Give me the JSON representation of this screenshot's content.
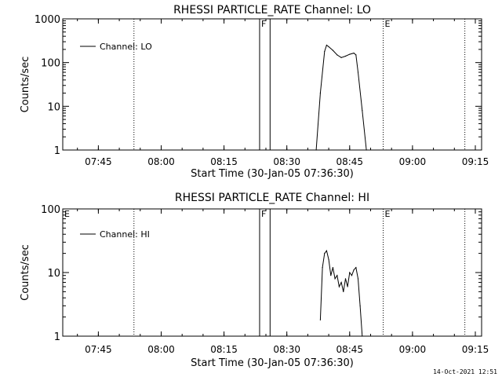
{
  "footer_timestamp": "14-Oct-2021 12:51",
  "chart_data": [
    {
      "type": "line",
      "title": "RHESSI PARTICLE_RATE Channel: LO",
      "xlabel": "Start Time (30-Jan-05 07:36:30)",
      "ylabel": "Counts/sec",
      "yscale": "log",
      "ylim": [
        1,
        1000
      ],
      "yticks": [
        {
          "v": 1,
          "label": "1"
        },
        {
          "v": 10,
          "label": "10"
        },
        {
          "v": 100,
          "label": "100"
        },
        {
          "v": 1000,
          "label": "1000"
        }
      ],
      "xlim": [
        "07:36:30",
        "09:16:30"
      ],
      "xticks": [
        "07:45",
        "08:00",
        "08:15",
        "08:30",
        "08:45",
        "09:00",
        "09:15"
      ],
      "legend": {
        "position": "top-left",
        "label": "Channel: LO"
      },
      "grid": false,
      "markers": [
        {
          "time": "07:53:30",
          "style": "dotted",
          "label": ""
        },
        {
          "time": "08:23:30",
          "style": "solid",
          "label": "F"
        },
        {
          "time": "08:26:00",
          "style": "solid",
          "label": ""
        },
        {
          "time": "08:53:00",
          "style": "dotted",
          "label": "E"
        },
        {
          "time": "09:12:30",
          "style": "dotted",
          "label": ""
        }
      ],
      "series": [
        {
          "name": "Channel: LO",
          "x": [
            "08:37:00",
            "08:38:00",
            "08:39:00",
            "08:39:30",
            "08:40:00",
            "08:41:00",
            "08:42:00",
            "08:43:00",
            "08:44:00",
            "08:45:00",
            "08:46:00",
            "08:46:30",
            "08:47:00",
            "08:48:00",
            "08:49:00"
          ],
          "y": [
            1,
            20,
            180,
            250,
            230,
            190,
            150,
            130,
            140,
            155,
            165,
            150,
            60,
            8,
            1
          ]
        }
      ]
    },
    {
      "type": "line",
      "title": "RHESSI PARTICLE_RATE Channel: HI",
      "xlabel": "Start Time (30-Jan-05 07:36:30)",
      "ylabel": "Counts/sec",
      "yscale": "log",
      "ylim": [
        1,
        100
      ],
      "yticks": [
        {
          "v": 1,
          "label": "1"
        },
        {
          "v": 10,
          "label": "10"
        },
        {
          "v": 100,
          "label": "100"
        }
      ],
      "xlim": [
        "07:36:30",
        "09:16:30"
      ],
      "xticks": [
        "07:45",
        "08:00",
        "08:15",
        "08:30",
        "08:45",
        "09:00",
        "09:15"
      ],
      "legend": {
        "position": "top-left",
        "label": "Channel: HI"
      },
      "grid": false,
      "markers": [
        {
          "time": "07:36:30",
          "style": "none",
          "label": "E"
        },
        {
          "time": "07:53:30",
          "style": "dotted",
          "label": ""
        },
        {
          "time": "08:23:30",
          "style": "solid",
          "label": "F"
        },
        {
          "time": "08:26:00",
          "style": "solid",
          "label": ""
        },
        {
          "time": "08:53:00",
          "style": "dotted",
          "label": "E"
        },
        {
          "time": "09:12:30",
          "style": "dotted",
          "label": ""
        }
      ],
      "series": [
        {
          "name": "Channel: HI",
          "x": [
            "08:38:00",
            "08:38:30",
            "08:39:00",
            "08:39:30",
            "08:40:00",
            "08:40:30",
            "08:41:00",
            "08:41:30",
            "08:42:00",
            "08:42:30",
            "08:43:00",
            "08:43:30",
            "08:44:00",
            "08:44:30",
            "08:45:00",
            "08:45:30",
            "08:46:00",
            "08:46:30",
            "08:47:00",
            "08:47:30",
            "08:48:00"
          ],
          "y": [
            1.8,
            12,
            20,
            22,
            16,
            9,
            12,
            8,
            9,
            6,
            7,
            5,
            8,
            6,
            10,
            9,
            11,
            12,
            8,
            3,
            1
          ]
        }
      ]
    }
  ]
}
